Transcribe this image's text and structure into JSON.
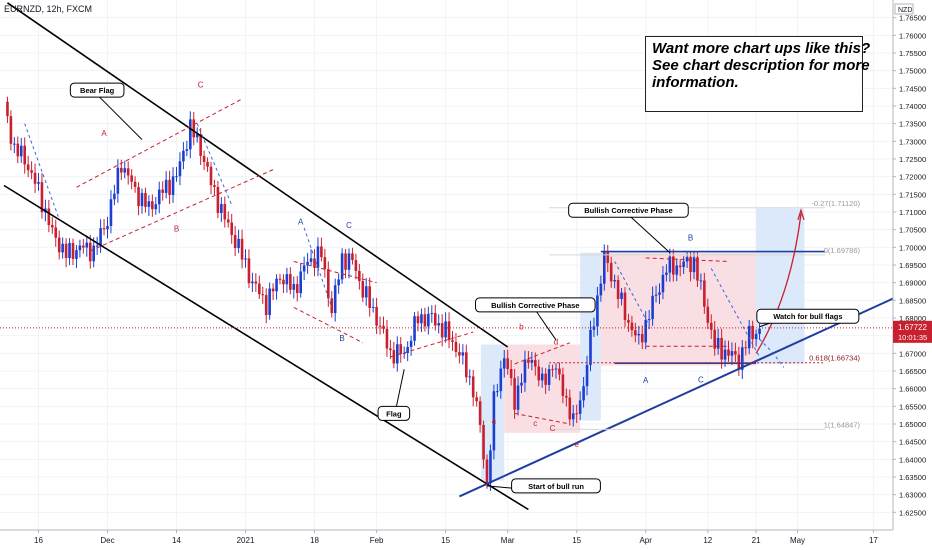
{
  "symbol_header": "EURNZD, 12h, FXCM",
  "callout": {
    "lines": [
      "Want more chart ups like this?",
      "See chart description for more",
      "information."
    ]
  },
  "colors": {
    "up": "#1a3fd1",
    "down": "#c8202e",
    "trend_blue": "#1f3f9e",
    "box_pink": "#f9dfe3",
    "box_blue": "#dbe9fa",
    "zone_grey": "#e3e3e3",
    "price_label": "#c8202e"
  },
  "chart_data": {
    "type": "candlestick",
    "y_axis": {
      "min": 1.62,
      "max": 1.77,
      "step": 0.005,
      "tick_labels": [
        "1.62500",
        "1.63000",
        "1.63500",
        "1.64000",
        "1.64500",
        "1.65000",
        "1.65500",
        "1.66000",
        "1.66500",
        "1.67000",
        "1.67500",
        "1.68000",
        "1.68500",
        "1.69000",
        "1.69500",
        "1.70000",
        "1.70500",
        "1.71000",
        "1.71500",
        "1.72000",
        "1.72500",
        "1.73000",
        "1.73500",
        "1.74000",
        "1.74500",
        "1.75000",
        "1.75500",
        "1.76000",
        "1.76500"
      ],
      "currency": "NZD"
    },
    "x_axis": {
      "ticks": [
        {
          "label": "16",
          "idx": 10
        },
        {
          "label": "Dec",
          "idx": 30
        },
        {
          "label": "14",
          "idx": 50
        },
        {
          "label": "2021",
          "idx": 70
        },
        {
          "label": "18",
          "idx": 90
        },
        {
          "label": "Feb",
          "idx": 108
        },
        {
          "label": "15",
          "idx": 128
        },
        {
          "label": "Mar",
          "idx": 146
        },
        {
          "label": "15",
          "idx": 166
        },
        {
          "label": "Apr",
          "idx": 186
        },
        {
          "label": "12",
          "idx": 204
        },
        {
          "label": "21",
          "idx": 218
        },
        {
          "label": "May",
          "idx": 230
        },
        {
          "label": "17",
          "idx": 252
        }
      ]
    },
    "current_price": {
      "value": 1.67722,
      "label": "1.67722",
      "countdown": "10:01:35"
    },
    "anchors": [
      {
        "i": 0,
        "p": 1.74
      },
      {
        "i": 3,
        "p": 1.728
      },
      {
        "i": 6,
        "p": 1.725
      },
      {
        "i": 10,
        "p": 1.716
      },
      {
        "i": 14,
        "p": 1.704
      },
      {
        "i": 18,
        "p": 1.698
      },
      {
        "i": 22,
        "p": 1.7
      },
      {
        "i": 26,
        "p": 1.699
      },
      {
        "i": 30,
        "p": 1.708
      },
      {
        "i": 34,
        "p": 1.724
      },
      {
        "i": 38,
        "p": 1.716
      },
      {
        "i": 42,
        "p": 1.711
      },
      {
        "i": 46,
        "p": 1.716
      },
      {
        "i": 50,
        "p": 1.72
      },
      {
        "i": 54,
        "p": 1.734
      },
      {
        "i": 57,
        "p": 1.728
      },
      {
        "i": 60,
        "p": 1.718
      },
      {
        "i": 64,
        "p": 1.708
      },
      {
        "i": 68,
        "p": 1.7
      },
      {
        "i": 72,
        "p": 1.69
      },
      {
        "i": 76,
        "p": 1.684
      },
      {
        "i": 80,
        "p": 1.692
      },
      {
        "i": 84,
        "p": 1.688
      },
      {
        "i": 88,
        "p": 1.696
      },
      {
        "i": 92,
        "p": 1.698
      },
      {
        "i": 95,
        "p": 1.682
      },
      {
        "i": 98,
        "p": 1.697
      },
      {
        "i": 101,
        "p": 1.696
      },
      {
        "i": 104,
        "p": 1.688
      },
      {
        "i": 108,
        "p": 1.68
      },
      {
        "i": 112,
        "p": 1.67
      },
      {
        "i": 116,
        "p": 1.67
      },
      {
        "i": 120,
        "p": 1.68
      },
      {
        "i": 124,
        "p": 1.68
      },
      {
        "i": 128,
        "p": 1.676
      },
      {
        "i": 132,
        "p": 1.67
      },
      {
        "i": 136,
        "p": 1.66
      },
      {
        "i": 138,
        "p": 1.649
      },
      {
        "i": 140,
        "p": 1.633
      },
      {
        "i": 142,
        "p": 1.656
      },
      {
        "i": 145,
        "p": 1.67
      },
      {
        "i": 148,
        "p": 1.656
      },
      {
        "i": 150,
        "p": 1.664
      },
      {
        "i": 153,
        "p": 1.669
      },
      {
        "i": 156,
        "p": 1.661
      },
      {
        "i": 159,
        "p": 1.667
      },
      {
        "i": 162,
        "p": 1.66
      },
      {
        "i": 165,
        "p": 1.65
      },
      {
        "i": 168,
        "p": 1.661
      },
      {
        "i": 171,
        "p": 1.68
      },
      {
        "i": 174,
        "p": 1.697
      },
      {
        "i": 177,
        "p": 1.69
      },
      {
        "i": 180,
        "p": 1.681
      },
      {
        "i": 184,
        "p": 1.673
      },
      {
        "i": 188,
        "p": 1.684
      },
      {
        "i": 192,
        "p": 1.694
      },
      {
        "i": 196,
        "p": 1.695
      },
      {
        "i": 200,
        "p": 1.696
      },
      {
        "i": 203,
        "p": 1.684
      },
      {
        "i": 206,
        "p": 1.672
      },
      {
        "i": 210,
        "p": 1.67
      },
      {
        "i": 213,
        "p": 1.668
      },
      {
        "i": 216,
        "p": 1.675
      },
      {
        "i": 219,
        "p": 1.677
      }
    ],
    "fib_levels": [
      {
        "label": "-0.27(1.71120)",
        "value": 1.7112,
        "emphasis": false
      },
      {
        "label": "0(1.69786)",
        "value": 1.69786,
        "emphasis": false
      },
      {
        "label": "0.618(1.66734)",
        "value": 1.66734,
        "emphasis": true
      },
      {
        "label": "1(1.64847)",
        "value": 1.64847,
        "emphasis": false
      }
    ],
    "annotations": {
      "boxed_labels": [
        {
          "text": "Bear Flag",
          "idx": 27,
          "p": 1.7445
        },
        {
          "text": "Bullish Corrective Phase",
          "idx": 181,
          "p": 1.7105
        },
        {
          "text": "Bullish Corrective Phase",
          "idx": 154,
          "p": 1.6837
        },
        {
          "text": "Watch for bull flags",
          "idx": 233,
          "p": 1.6805
        },
        {
          "text": "Flag",
          "idx": 113,
          "p": 1.653
        },
        {
          "text": "Start of bull run",
          "idx": 160,
          "p": 1.6325
        }
      ],
      "wave_letters": [
        {
          "t": "A",
          "idx": 29,
          "p": 1.7315,
          "c": "#c8202e"
        },
        {
          "t": "B",
          "idx": 50,
          "p": 1.7045,
          "c": "#c8202e"
        },
        {
          "t": "C",
          "idx": 57,
          "p": 1.7452,
          "c": "#c8202e"
        },
        {
          "t": "A",
          "idx": 86,
          "p": 1.7065,
          "c": "#1f3f9e"
        },
        {
          "t": "B",
          "idx": 98,
          "p": 1.6735,
          "c": "#1f3f9e"
        },
        {
          "t": "C",
          "idx": 100,
          "p": 1.7055,
          "c": "#1f3f9e"
        },
        {
          "t": "a",
          "idx": 142,
          "p": 1.6502,
          "c": "#c8202e"
        },
        {
          "t": "b",
          "idx": 150,
          "p": 1.6768,
          "c": "#c8202e"
        },
        {
          "t": "c",
          "idx": 154,
          "p": 1.6494,
          "c": "#c8202e"
        },
        {
          "t": "C",
          "idx": 159,
          "p": 1.648,
          "c": "#c8202e"
        },
        {
          "t": "d",
          "idx": 160,
          "p": 1.6725,
          "c": "#c8202e"
        },
        {
          "t": "e",
          "idx": 166,
          "p": 1.6435,
          "c": "#c8202e"
        },
        {
          "t": "B",
          "idx": 199,
          "p": 1.702,
          "c": "#1f3f9e"
        },
        {
          "t": "A",
          "idx": 186,
          "p": 1.6616,
          "c": "#1f3f9e"
        },
        {
          "t": "C",
          "idx": 202,
          "p": 1.6618,
          "c": "#1f3f9e"
        }
      ]
    }
  }
}
